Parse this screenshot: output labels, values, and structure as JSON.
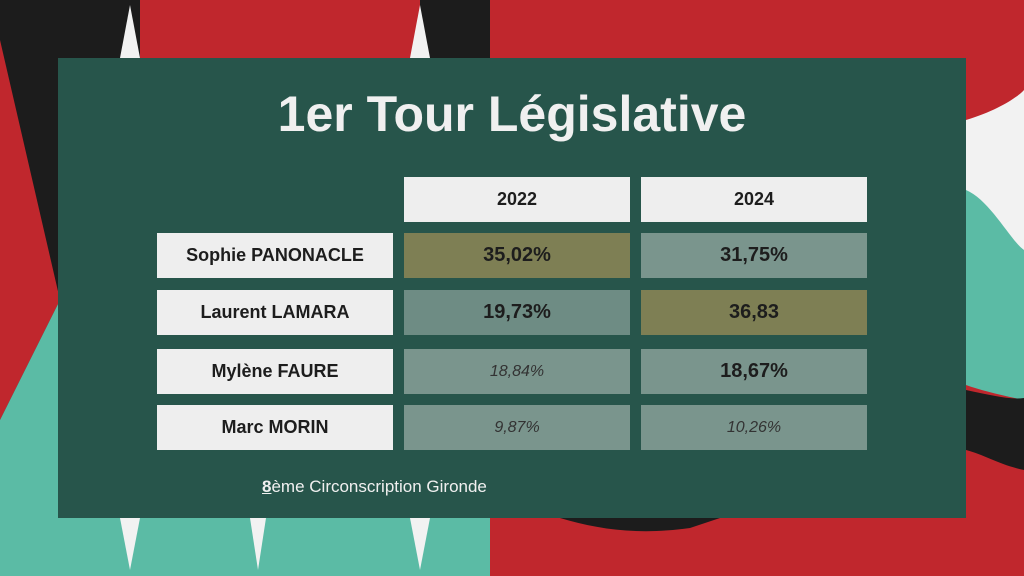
{
  "title": "1er Tour Législative",
  "years": [
    "2022",
    "2024"
  ],
  "candidates": [
    {
      "name": "Sophie PANONACLE",
      "v2022": "35,02%",
      "v2024": "31,75%"
    },
    {
      "name": "Laurent LAMARA",
      "v2022": "19,73%",
      "v2024": "36,83"
    },
    {
      "name": "Mylène FAURE",
      "v2022": "18,84%",
      "v2024": "18,67%"
    },
    {
      "name": "Marc MORIN",
      "v2022": "9,87%",
      "v2024": "10,26%"
    }
  ],
  "footer": {
    "number": "8",
    "rest": "ème Circonscription Gironde"
  },
  "colors": {
    "panel": "#27554b",
    "highlight": "#7e7f54",
    "cell": "#7a958d",
    "background_red": "#c0272d",
    "background_black": "#1c1c1c",
    "background_teal": "#5bbba5"
  }
}
